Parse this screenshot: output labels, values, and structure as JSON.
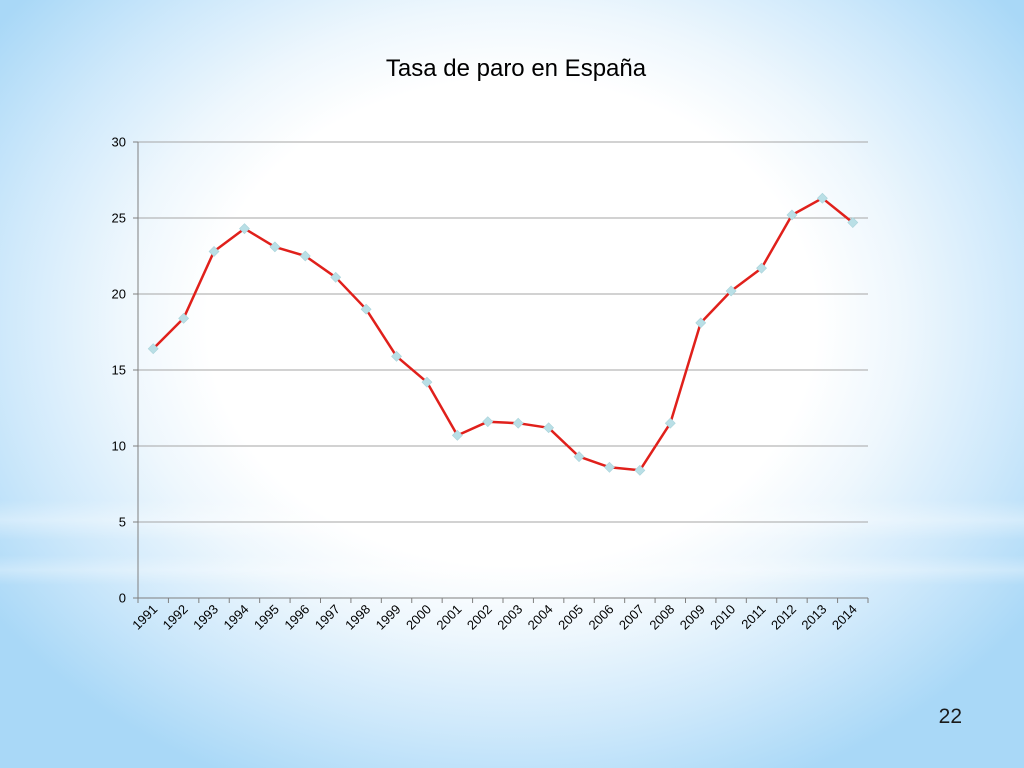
{
  "slide": {
    "page_number": "22"
  },
  "colors": {
    "line": "#e0201b",
    "marker": "#b9dfe6",
    "grid": "#a6a6a6",
    "axis": "#7f7f7f",
    "text": "#000000"
  },
  "chart_data": {
    "type": "line",
    "title": "Tasa de paro en España",
    "xlabel": "",
    "ylabel": "",
    "ylim": [
      0,
      30
    ],
    "yticks": [
      0,
      5,
      10,
      15,
      20,
      25,
      30
    ],
    "grid": true,
    "legend": "none",
    "categories": [
      "1991",
      "1992",
      "1993",
      "1994",
      "1995",
      "1996",
      "1997",
      "1998",
      "1999",
      "2000",
      "2001",
      "2002",
      "2003",
      "2004",
      "2005",
      "2006",
      "2007",
      "2008",
      "2009",
      "2010",
      "2011",
      "2012",
      "2013",
      "2014"
    ],
    "series": [
      {
        "values": [
          16.4,
          18.4,
          22.8,
          24.3,
          23.1,
          22.5,
          21.1,
          19.0,
          15.9,
          14.2,
          10.7,
          11.6,
          11.5,
          11.2,
          9.3,
          8.6,
          8.4,
          11.5,
          18.1,
          20.2,
          21.7,
          25.2,
          26.3,
          24.7
        ]
      }
    ]
  }
}
